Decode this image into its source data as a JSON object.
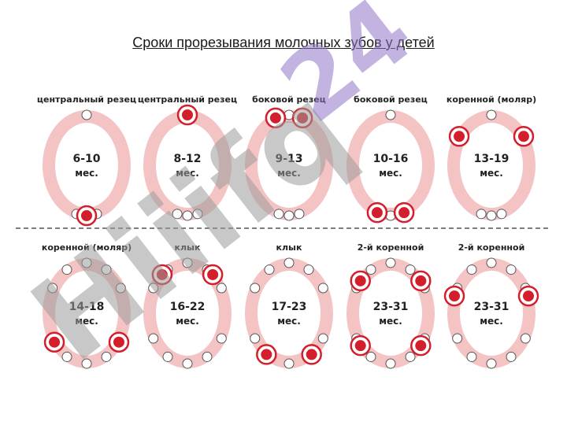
{
  "title": "Сроки прорезывания молочных зубов у детей",
  "watermark": "Hiiifq24",
  "colors": {
    "gum": "#f4c4c4",
    "highlight": "#d21f2b",
    "watermark": "#9a9a9a",
    "watermark_accent": "#8f74c9"
  },
  "panels": [
    {
      "label": "центральный резец",
      "age": "6-10",
      "unit": "мес."
    },
    {
      "label": "центральный резец",
      "age": "8-12",
      "unit": "мес."
    },
    {
      "label": "боковой резец",
      "age": "9-13",
      "unit": "мес."
    },
    {
      "label": "боковой резец",
      "age": "10-16",
      "unit": "мес."
    },
    {
      "label": "коренной (моляр)",
      "age": "13-19",
      "unit": "мес."
    },
    {
      "label": "коренной (моляр)",
      "age": "14-18",
      "unit": "мес."
    },
    {
      "label": "клык",
      "age": "16-22",
      "unit": "мес."
    },
    {
      "label": "клык",
      "age": "17-23",
      "unit": "мес."
    },
    {
      "label": "2-й коренной",
      "age": "23-31",
      "unit": "мес."
    },
    {
      "label": "2-й коренной",
      "age": "23-31",
      "unit": "мес."
    }
  ]
}
